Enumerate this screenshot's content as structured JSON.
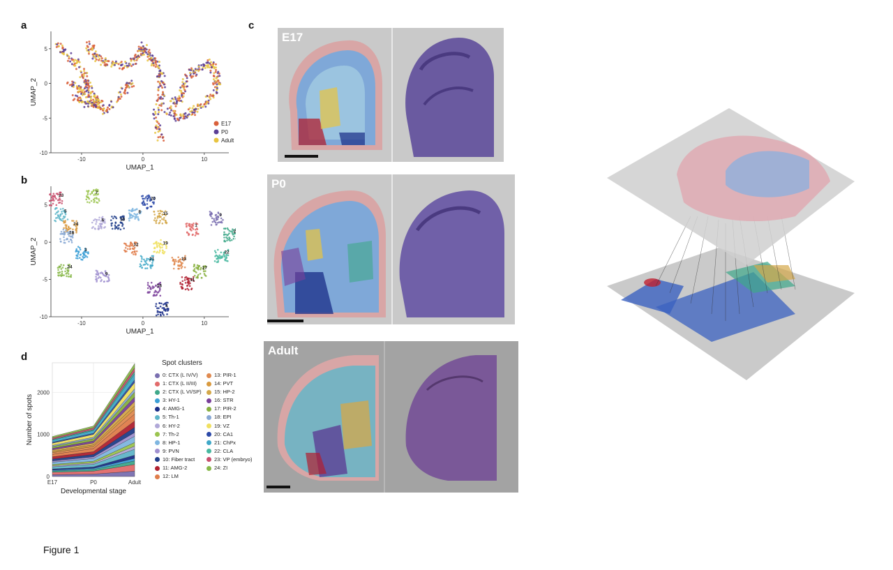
{
  "figure": {
    "caption": "Figure 1",
    "panels": {
      "a": "a",
      "b": "b",
      "c": "c",
      "d": "d"
    }
  },
  "panel_c": {
    "stages": [
      "E17",
      "P0",
      "Adult"
    ]
  },
  "chart_data": [
    {
      "id": "a",
      "type": "scatter",
      "xlabel": "UMAP_1",
      "ylabel": "UMAP_2",
      "xlim": [
        -15,
        14
      ],
      "ylim": [
        -10,
        7.5
      ],
      "xticks": [
        -10,
        0,
        10
      ],
      "yticks": [
        5,
        0,
        -5,
        -10
      ],
      "legend_position": "bottom-right",
      "series": [
        {
          "name": "E17",
          "color": "#d9603b"
        },
        {
          "name": "P0",
          "color": "#5b3f95"
        },
        {
          "name": "Adult",
          "color": "#e8c440"
        }
      ]
    },
    {
      "id": "b",
      "type": "scatter",
      "xlabel": "UMAP_1",
      "ylabel": "UMAP_2",
      "xlim": [
        -15,
        14
      ],
      "ylim": [
        -10,
        7.5
      ],
      "xticks": [
        -10,
        0,
        10
      ],
      "yticks": [
        5,
        0,
        -5,
        -10
      ],
      "cluster_labels": [
        {
          "label": "23",
          "x": -14.2,
          "y": 5.8,
          "color": "#c94f6d"
        },
        {
          "label": "7",
          "x": -8.2,
          "y": 6.2,
          "color": "#9bc44f"
        },
        {
          "label": "5",
          "x": -13.3,
          "y": 3.7,
          "color": "#5fb6c9"
        },
        {
          "label": "14",
          "x": -11.8,
          "y": 2.0,
          "color": "#d99a3f"
        },
        {
          "label": "6",
          "x": -7.2,
          "y": 2.5,
          "color": "#b0a8d8"
        },
        {
          "label": "10",
          "x": -4.2,
          "y": 2.6,
          "color": "#1f3d8a"
        },
        {
          "label": "20",
          "x": 0.8,
          "y": 5.4,
          "color": "#2c49a8"
        },
        {
          "label": "8",
          "x": -1.2,
          "y": 3.6,
          "color": "#7fb6e0"
        },
        {
          "label": "15",
          "x": 2.8,
          "y": 3.4,
          "color": "#d4a84a"
        },
        {
          "label": "1",
          "x": 8.0,
          "y": 1.8,
          "color": "#e26b6b"
        },
        {
          "label": "0",
          "x": 12.0,
          "y": 3.2,
          "color": "#7a6fb0"
        },
        {
          "label": "2",
          "x": 14.3,
          "y": 1.0,
          "color": "#3fa88a"
        },
        {
          "label": "18",
          "x": -12.5,
          "y": 0.8,
          "color": "#88a8d4"
        },
        {
          "label": "3",
          "x": -10.0,
          "y": -1.5,
          "color": "#3b9fd6"
        },
        {
          "label": "12",
          "x": -2.0,
          "y": -0.8,
          "color": "#e07d4a"
        },
        {
          "label": "19",
          "x": 2.8,
          "y": -0.6,
          "color": "#f0e060"
        },
        {
          "label": "22",
          "x": 12.8,
          "y": -1.8,
          "color": "#48b8a0"
        },
        {
          "label": "21",
          "x": 0.6,
          "y": -2.7,
          "color": "#3fa8c8"
        },
        {
          "label": "13",
          "x": 5.8,
          "y": -2.7,
          "color": "#e08a50"
        },
        {
          "label": "24",
          "x": -12.8,
          "y": -3.8,
          "color": "#88b84a"
        },
        {
          "label": "9",
          "x": -6.6,
          "y": -4.7,
          "color": "#a090d0"
        },
        {
          "label": "17",
          "x": 9.2,
          "y": -3.9,
          "color": "#88b040"
        },
        {
          "label": "11",
          "x": 7.2,
          "y": -5.5,
          "color": "#b02030"
        },
        {
          "label": "16",
          "x": 1.8,
          "y": -6.3,
          "color": "#7a3f9a"
        },
        {
          "label": "4",
          "x": 3.2,
          "y": -9.0,
          "color": "#1a2e88"
        }
      ]
    },
    {
      "id": "d",
      "type": "area",
      "x": [
        "E17",
        "P0",
        "Adult"
      ],
      "xlabel": "Developmental stage",
      "ylabel": "Number of spots",
      "ylim": [
        0,
        2700
      ],
      "yticks": [
        0,
        1000,
        2000
      ],
      "grid": true,
      "totals": [
        950,
        1200,
        2680
      ],
      "legend_title": "Spot clusters",
      "series": [
        {
          "name": "0: CTX (L IV/V)",
          "color": "#7a6fb0"
        },
        {
          "name": "1: CTX (L II/III)",
          "color": "#e26b6b"
        },
        {
          "name": "2: CTX (L VI/SP)",
          "color": "#3fa88a"
        },
        {
          "name": "3: HY-1",
          "color": "#3b9fd6"
        },
        {
          "name": "4: AMG-1",
          "color": "#1a2e88"
        },
        {
          "name": "5: Th-1",
          "color": "#5fb6c9"
        },
        {
          "name": "6: HY-2",
          "color": "#b0a8d8"
        },
        {
          "name": "7: Th-2",
          "color": "#9bc44f"
        },
        {
          "name": "8: HP-1",
          "color": "#7fb6e0"
        },
        {
          "name": "9: PVN",
          "color": "#a090d0"
        },
        {
          "name": "10: Fiber tract",
          "color": "#1f3d8a"
        },
        {
          "name": "11: AMG-2",
          "color": "#b02030"
        },
        {
          "name": "12: LM",
          "color": "#e07d4a"
        },
        {
          "name": "13: PIR-1",
          "color": "#e08a50"
        },
        {
          "name": "14: PVT",
          "color": "#d99a3f"
        },
        {
          "name": "15: HP-2",
          "color": "#d4a84a"
        },
        {
          "name": "16: STR",
          "color": "#7a3f9a"
        },
        {
          "name": "17: PIR-2",
          "color": "#88b040"
        },
        {
          "name": "18: EPI",
          "color": "#88a8d4"
        },
        {
          "name": "19: VZ",
          "color": "#f0e060"
        },
        {
          "name": "20: CA1",
          "color": "#2c49a8"
        },
        {
          "name": "21: ChPx",
          "color": "#3fa8c8"
        },
        {
          "name": "22: CLA",
          "color": "#48b8a0"
        },
        {
          "name": "23: VP (embryo)",
          "color": "#c94f6d"
        },
        {
          "name": "24: ZI",
          "color": "#88b84a"
        }
      ]
    }
  ]
}
